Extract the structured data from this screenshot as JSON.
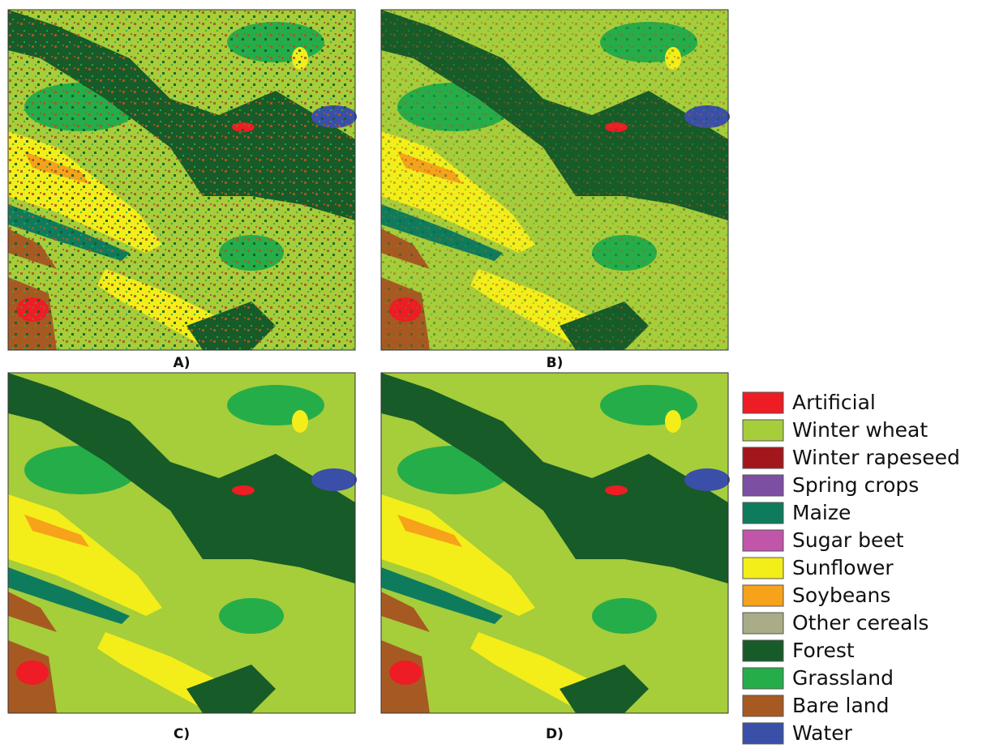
{
  "panels": [
    {
      "label": "A)"
    },
    {
      "label": "B)"
    },
    {
      "label": "C)"
    },
    {
      "label": "D)"
    }
  ],
  "legend": [
    {
      "name": "Artificial",
      "color": "#ee1c24"
    },
    {
      "name": "Winter wheat",
      "color": "#a6cd3a"
    },
    {
      "name": "Winter rapeseed",
      "color": "#a3161c"
    },
    {
      "name": "Spring crops",
      "color": "#7d4fa3"
    },
    {
      "name": "Maize",
      "color": "#0e7c5c"
    },
    {
      "name": "Sugar beet",
      "color": "#c155a9"
    },
    {
      "name": "Sunflower",
      "color": "#f3ed1a"
    },
    {
      "name": "Soybeans",
      "color": "#f6a21b"
    },
    {
      "name": "Other cereals",
      "color": "#a9ac86"
    },
    {
      "name": "Forest",
      "color": "#175b28"
    },
    {
      "name": "Grassland",
      "color": "#25ad4a"
    },
    {
      "name": "Bare land",
      "color": "#a65a22"
    },
    {
      "name": "Water",
      "color": "#3a4fa7"
    }
  ]
}
